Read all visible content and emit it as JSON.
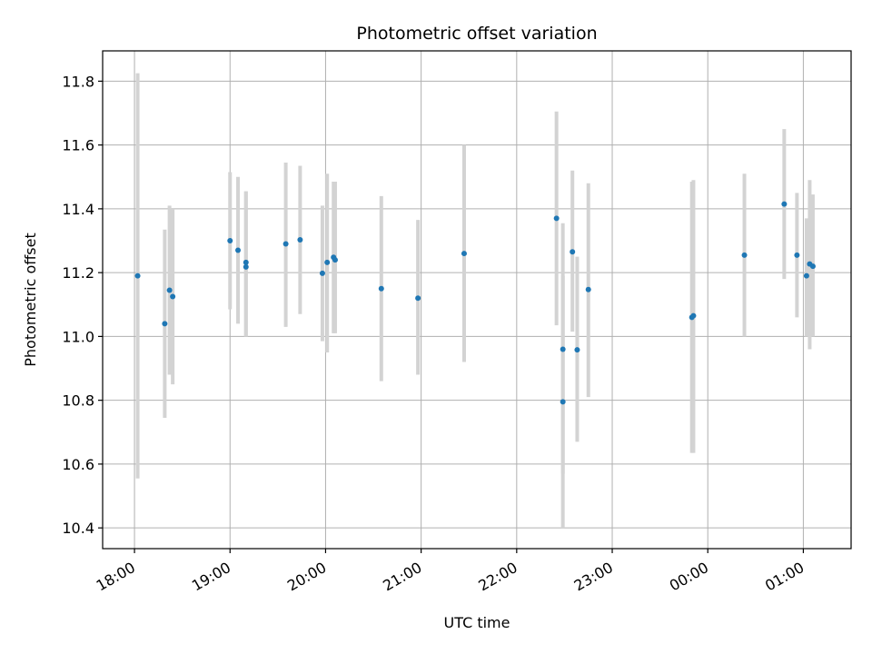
{
  "chart_data": {
    "type": "scatter",
    "title": "Photometric offset variation",
    "xlabel": "UTC time",
    "ylabel": "Photometric offset",
    "x_ticks": [
      "18:00",
      "19:00",
      "20:00",
      "21:00",
      "22:00",
      "23:00",
      "00:00",
      "01:00"
    ],
    "y_ticks": [
      "10.4",
      "10.6",
      "10.8",
      "11.0",
      "11.2",
      "11.4",
      "11.6",
      "11.8"
    ],
    "xlim": [
      "17:40",
      "00:00 +1d 01:30"
    ],
    "ylim": [
      10.335,
      11.895
    ],
    "grid": true,
    "points": [
      {
        "t": "18:02",
        "y": 11.19,
        "low": 10.555,
        "high": 11.825
      },
      {
        "t": "18:19",
        "y": 11.04,
        "low": 10.745,
        "high": 11.335
      },
      {
        "t": "18:22",
        "y": 11.145,
        "low": 10.88,
        "high": 11.41
      },
      {
        "t": "18:24",
        "y": 11.125,
        "low": 10.85,
        "high": 11.4
      },
      {
        "t": "19:00",
        "y": 11.3,
        "low": 11.085,
        "high": 11.515
      },
      {
        "t": "19:05",
        "y": 11.27,
        "low": 11.04,
        "high": 11.5
      },
      {
        "t": "19:10",
        "y": 11.232,
        "low": 11.0,
        "high": 11.455
      },
      {
        "t": "19:10",
        "y": 11.218,
        "low": 11.0,
        "high": 11.455
      },
      {
        "t": "19:35",
        "y": 11.29,
        "low": 11.03,
        "high": 11.545
      },
      {
        "t": "19:44",
        "y": 11.303,
        "low": 11.07,
        "high": 11.535
      },
      {
        "t": "19:58",
        "y": 11.198,
        "low": 10.985,
        "high": 11.41
      },
      {
        "t": "20:01",
        "y": 11.232,
        "low": 10.95,
        "high": 11.51
      },
      {
        "t": "20:05",
        "y": 11.248,
        "low": 11.01,
        "high": 11.485
      },
      {
        "t": "20:06",
        "y": 11.24,
        "low": 11.01,
        "high": 11.485
      },
      {
        "t": "20:35",
        "y": 11.15,
        "low": 10.86,
        "high": 11.44
      },
      {
        "t": "20:58",
        "y": 11.12,
        "low": 10.88,
        "high": 11.365
      },
      {
        "t": "21:27",
        "y": 11.26,
        "low": 10.92,
        "high": 11.6
      },
      {
        "t": "22:25",
        "y": 11.37,
        "low": 11.035,
        "high": 11.705
      },
      {
        "t": "22:29",
        "y": 10.96,
        "low": 10.57,
        "high": 11.355
      },
      {
        "t": "22:29",
        "y": 10.795,
        "low": 10.4,
        "high": 11.19
      },
      {
        "t": "22:35",
        "y": 11.265,
        "low": 11.015,
        "high": 11.52
      },
      {
        "t": "22:38",
        "y": 10.958,
        "low": 10.67,
        "high": 11.25
      },
      {
        "t": "22:45",
        "y": 11.147,
        "low": 10.81,
        "high": 11.48
      },
      {
        "t": "23:50",
        "y": 11.06,
        "low": 10.635,
        "high": 11.485
      },
      {
        "t": "23:51",
        "y": 11.065,
        "low": 10.635,
        "high": 11.49
      },
      {
        "t": "00:23",
        "y": 11.255,
        "low": 11.0,
        "high": 11.51
      },
      {
        "t": "00:48",
        "y": 11.415,
        "low": 11.18,
        "high": 11.65
      },
      {
        "t": "00:56",
        "y": 11.255,
        "low": 11.06,
        "high": 11.45
      },
      {
        "t": "01:02",
        "y": 11.19,
        "low": 11.0,
        "high": 11.37
      },
      {
        "t": "01:04",
        "y": 11.227,
        "low": 10.96,
        "high": 11.49
      },
      {
        "t": "01:06",
        "y": 11.22,
        "low": 11.0,
        "high": 11.445
      }
    ],
    "point_color": "#1f77b4",
    "errorbar_color": "#d3d3d3"
  }
}
